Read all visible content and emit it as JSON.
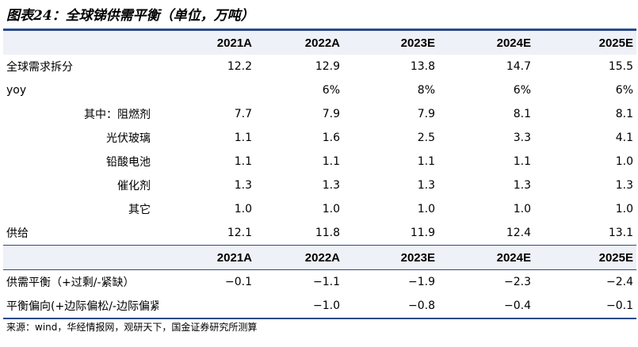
{
  "title": "图表24：全球锑供需平衡（单位，万吨）",
  "columns": [
    "",
    "2021A",
    "2022A",
    "2023E",
    "2024E",
    "2025E"
  ],
  "rows": [
    {
      "label": "全球需求拆分",
      "values": [
        "12.2",
        "12.9",
        "13.8",
        "14.7",
        "15.5"
      ],
      "style": "lbl"
    },
    {
      "label": "yoy",
      "values": [
        "",
        "6%",
        "8%",
        "6%",
        "6%"
      ],
      "style": "lbl"
    },
    {
      "label": "其中：阻燃剂",
      "values": [
        "7.7",
        "7.9",
        "7.9",
        "8.1",
        "8.1"
      ],
      "style": "sub"
    },
    {
      "label": "光伏玻璃",
      "values": [
        "1.1",
        "1.6",
        "2.5",
        "3.3",
        "4.1"
      ],
      "style": "sub"
    },
    {
      "label": "铅酸电池",
      "values": [
        "1.1",
        "1.1",
        "1.1",
        "1.1",
        "1.0"
      ],
      "style": "sub"
    },
    {
      "label": "催化剂",
      "values": [
        "1.3",
        "1.3",
        "1.3",
        "1.3",
        "1.3"
      ],
      "style": "sub"
    },
    {
      "label": "其它",
      "values": [
        "1.0",
        "1.0",
        "1.0",
        "1.0",
        "1.0"
      ],
      "style": "sub"
    },
    {
      "label": "供给",
      "values": [
        "12.1",
        "11.8",
        "11.9",
        "12.4",
        "13.1"
      ],
      "style": "lbl"
    }
  ],
  "rows2": [
    {
      "label": "供需平衡（+过剩/-紧缺）",
      "values": [
        "−0.1",
        "−1.1",
        "−1.9",
        "−2.3",
        "−2.4"
      ]
    },
    {
      "label": "平衡偏向(+边际偏松/-边际偏紧)",
      "values": [
        "",
        "−1.0",
        "−0.8",
        "−0.4",
        "−0.1"
      ]
    }
  ],
  "source": "来源：wind，华经情报网，观研天下，国金证券研究所测算"
}
